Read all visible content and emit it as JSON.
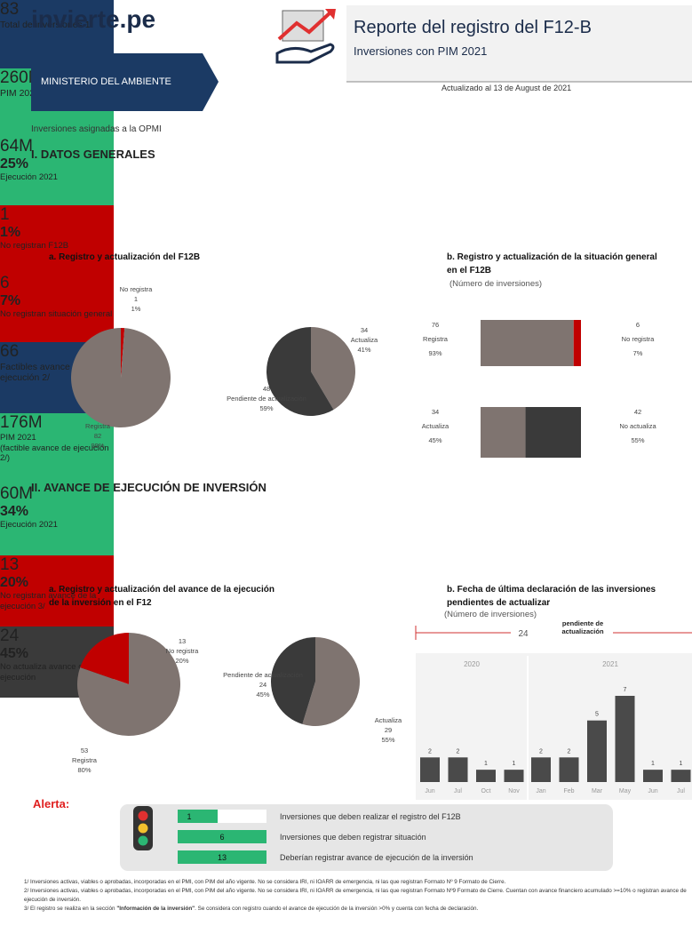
{
  "header": {
    "logo": "invierte.pe",
    "title": "Reporte del registro del F12-B",
    "subtitle": "Inversiones con PIM 2021",
    "ministry": "MINISTERIO DEL AMBIENTE",
    "updated": "Actualizado al 13 de August de 2021",
    "assigned": "Inversiones asignadas a la OPMI"
  },
  "sections": [
    {
      "title": "I. DATOS GENERALES",
      "cards": [
        {
          "value": "83",
          "label": "Total de inversiones 1/",
          "color": "#1b3a64"
        },
        {
          "value": "260M",
          "label": "PIM 2021",
          "color": "#2bb673"
        },
        {
          "value": "64M",
          "percent": "25%",
          "label": "Ejecución 2021",
          "color": "#2bb673"
        },
        {
          "value": "1",
          "percent": "1%",
          "label": "No registran F12B",
          "color": "#c00000"
        },
        {
          "value": "6",
          "percent": "7%",
          "label": "No registran situación general",
          "color": "#c00000"
        }
      ],
      "part_a": {
        "title": "a. Registro y actualización del F12B",
        "pies": [
          {
            "slices": [
              {
                "name": "No registra",
                "value": 1,
                "percent": "1%",
                "color": "#c00000"
              },
              {
                "name": "Registra",
                "value": 82,
                "percent": "99%",
                "color": "#7f7470"
              }
            ]
          },
          {
            "slices": [
              {
                "name": "Actualiza",
                "value": 34,
                "percent": "41%",
                "color": "#7f7470"
              },
              {
                "name": "Pendiente de actualización",
                "value": 48,
                "percent": "59%",
                "color": "#3a3a3a"
              }
            ]
          }
        ]
      },
      "part_b": {
        "title": "b. Registro y actualización de la situación general en el F12B",
        "note": "(Número de inversiones)",
        "bars": [
          {
            "segments": [
              {
                "name": "Registra",
                "value": 76,
                "percent": "93%",
                "color": "#7f7470"
              },
              {
                "name": "No registra",
                "value": 6,
                "percent": "7%",
                "color": "#c00000"
              }
            ]
          },
          {
            "segments": [
              {
                "name": "Actualiza",
                "value": 34,
                "percent": "45%",
                "color": "#7f7470"
              },
              {
                "name": "No actualiza",
                "value": 42,
                "percent": "55%",
                "color": "#3a3a3a"
              }
            ]
          }
        ]
      }
    },
    {
      "title": "II. AVANCE DE EJECUCIÓN DE INVERSIÓN",
      "cards": [
        {
          "value": "66",
          "label": "Factibles avance de ejecución 2/",
          "color": "#1b3a64"
        },
        {
          "value": "176M",
          "label": "PIM 2021",
          "note": "(factible avance de ejecución 2/)",
          "color": "#2bb673"
        },
        {
          "value": "60M",
          "percent": "34%",
          "label": "Ejecución 2021",
          "color": "#2bb673"
        },
        {
          "value": "13",
          "percent": "20%",
          "label": "No registran avance de la ejecución 3/",
          "color": "#c00000"
        },
        {
          "value": "24",
          "percent": "45%",
          "label": "No actualiza avance de la ejecución",
          "color": "#3a3a3a"
        }
      ],
      "part_a": {
        "title": "a. Registro y actualización del avance de la ejecución de la inversión en el F12",
        "pies": [
          {
            "slices": [
              {
                "name": "Registra",
                "value": 53,
                "percent": "80%",
                "color": "#7f7470"
              },
              {
                "name": "No registra",
                "value": 13,
                "percent": "20%",
                "color": "#c00000"
              }
            ]
          },
          {
            "slices": [
              {
                "name": "Actualiza",
                "value": 29,
                "percent": "55%",
                "color": "#7f7470"
              },
              {
                "name": "Pendiente de actualización",
                "value": 24,
                "percent": "45%",
                "color": "#3a3a3a"
              }
            ]
          }
        ]
      },
      "part_b": {
        "title": "b. Fecha de última declaración de las inversiones pendientes de actualizar",
        "note": "(Número de inversiones)",
        "chart": {
          "type": "bar",
          "total": 24,
          "total_label": "pendiente de actualización",
          "color": "#4a4a4a",
          "groups": [
            {
              "year": "2020",
              "categories": [
                "Jun",
                "Jul",
                "Oct",
                "Nov"
              ],
              "values": [
                2,
                2,
                1,
                1
              ]
            },
            {
              "year": "2021",
              "categories": [
                "Jan",
                "Feb",
                "Mar",
                "May",
                "Jun",
                "Jul"
              ],
              "values": [
                2,
                2,
                5,
                7,
                1,
                1
              ]
            }
          ]
        }
      }
    }
  ],
  "alert": {
    "title": "Alerta:",
    "rows": [
      {
        "value": 1,
        "text": "Inversiones que deben realizar el registro del F12B"
      },
      {
        "value": 6,
        "text": "Inversiones que deben registrar situación"
      },
      {
        "value": 13,
        "text": "Deberían registrar avance de ejecución de la inversión"
      }
    ]
  },
  "footnotes": [
    {
      "parts": [
        "1/ Inversiones activas, viables o aprobadas, incorporadas en el PMI, con PIM del año vigente. No se considera IRI, ni IOARR de emergencia, ni las que registran Formato Nº 9 Formato de Cierre."
      ]
    },
    {
      "parts": [
        "2/ Inversiones activas, viables o aprobadas, incorporadas en el PMI, con PIM del año vigente. No se considera IRI, ni IOARR de emergencia, ni las que registran Formato Nº9 Formato de Cierre. Cuentan con avance financiero acumulado >=10% o registran avance de ejecución de inversión."
      ]
    },
    {
      "parts": [
        "3/ El registro se realiza en la sección ",
        "\"Información de la inversión\"",
        ". Se considera con registro cuando el avance de ejecución de la inversión >0% y cuenta con fecha de declaración."
      ]
    }
  ]
}
